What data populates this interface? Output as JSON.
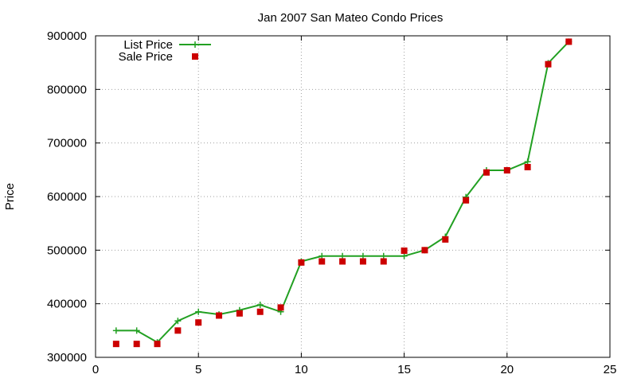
{
  "chart_data": {
    "type": "line",
    "title": "Jan 2007 San Mateo Condo Prices",
    "xlabel": "",
    "ylabel": "Price",
    "xlim": [
      0,
      25
    ],
    "ylim": [
      300000,
      900000
    ],
    "x_ticks": [
      0,
      5,
      10,
      15,
      20,
      25
    ],
    "y_ticks": [
      300000,
      400000,
      500000,
      600000,
      700000,
      800000,
      900000
    ],
    "grid": true,
    "legend_position": "top-left",
    "series": [
      {
        "name": "List Price",
        "style": "line-with-plus-markers",
        "color": "#22a022",
        "x": [
          1,
          2,
          3,
          4,
          5,
          6,
          7,
          8,
          9,
          10,
          11,
          12,
          13,
          14,
          15,
          16,
          17,
          18,
          19,
          20,
          21,
          22,
          23
        ],
        "y": [
          350000,
          350000,
          328000,
          368000,
          385000,
          380000,
          388000,
          398000,
          385000,
          479000,
          489000,
          489000,
          489000,
          489000,
          489000,
          500000,
          525000,
          599000,
          649000,
          649000,
          665000,
          849000,
          889000
        ]
      },
      {
        "name": "Sale Price",
        "style": "square-markers",
        "color": "#cc0000",
        "x": [
          1,
          2,
          3,
          4,
          5,
          6,
          7,
          8,
          9,
          10,
          11,
          12,
          13,
          14,
          15,
          16,
          17,
          18,
          19,
          20,
          21,
          22,
          23
        ],
        "y": [
          325000,
          325000,
          325000,
          350000,
          365000,
          378000,
          382000,
          385000,
          393000,
          477000,
          479000,
          479000,
          479000,
          479000,
          499000,
          500000,
          520000,
          593000,
          645000,
          649000,
          655000,
          847000,
          889000
        ]
      }
    ]
  }
}
